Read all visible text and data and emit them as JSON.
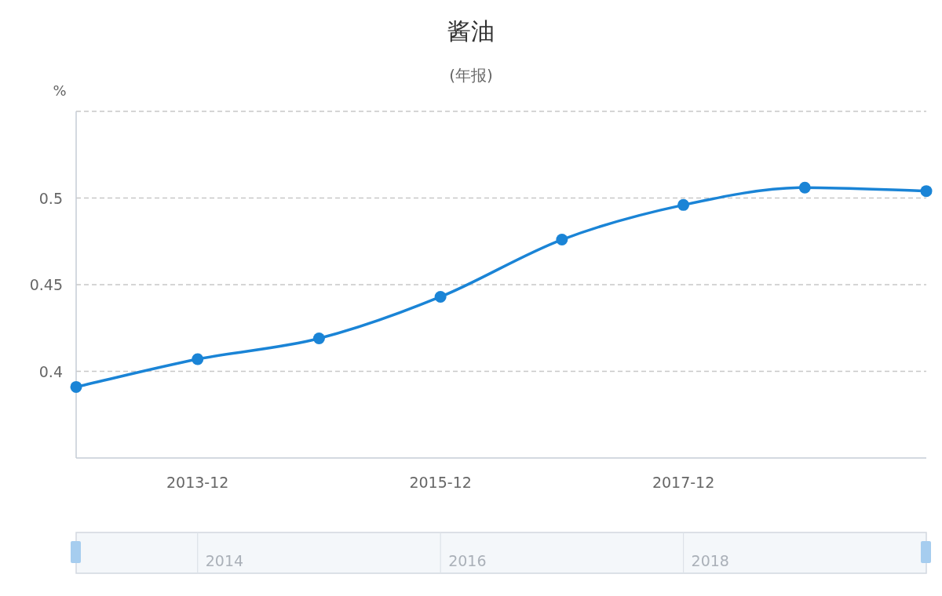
{
  "chart_data": {
    "type": "line",
    "title": "酱油",
    "subtitle": "(年报)",
    "ylabel": "%",
    "categories": [
      null,
      "2013-12",
      null,
      "2015-12",
      null,
      "2017-12",
      null,
      null
    ],
    "series": [
      {
        "color": "#1a84d6",
        "values": [
          0.391,
          0.407,
          0.419,
          0.443,
          0.476,
          0.496,
          0.506,
          0.504
        ]
      }
    ],
    "ylim": [
      0.35,
      0.55
    ],
    "yticks": [
      {
        "value": 0.35,
        "label": null
      },
      0.4,
      0.45,
      0.5,
      {
        "value": 0.55,
        "label": null
      }
    ],
    "grid": "y",
    "marker": "circle",
    "line_style": "solid",
    "annotations": [
      "2014",
      "2016",
      "2018"
    ]
  }
}
